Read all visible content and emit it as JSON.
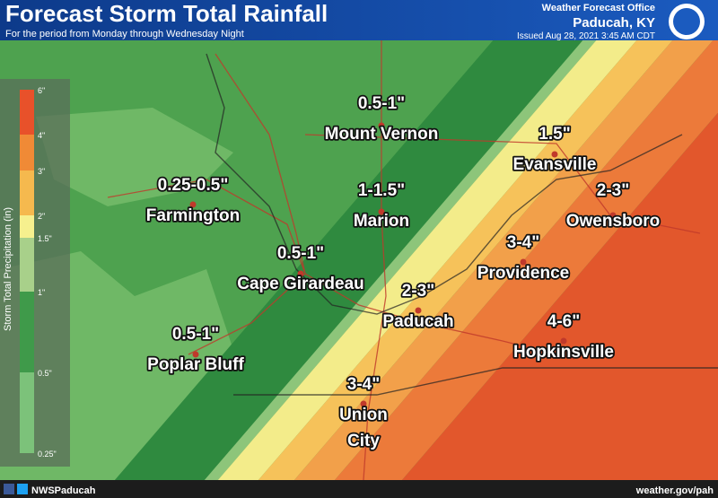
{
  "header": {
    "title": "Forecast Storm Total Rainfall",
    "subtitle": "For the period from Monday through Wednesday Night",
    "office": "Weather Forecast Office",
    "location": "Paducah, KY",
    "issued": "Issued Aug 28, 2021 3:45 AM CDT"
  },
  "legend": {
    "title": "Storm Total Precipitation (in)",
    "labels": [
      "6\"",
      "4\"",
      "3\"",
      "2\"",
      "1.5\"",
      "1\"",
      "0.5\"",
      "0.25\""
    ]
  },
  "cities": [
    {
      "amount": "0.5-1\"",
      "lines": [
        "Mount Vernon"
      ]
    },
    {
      "amount": "1.5\"",
      "lines": [
        "Evansville"
      ]
    },
    {
      "amount": "0.25-0.5\"",
      "lines": [
        "Farmington"
      ]
    },
    {
      "amount": "1-1.5\"",
      "lines": [
        "Marion"
      ]
    },
    {
      "amount": "2-3\"",
      "lines": [
        "Owensboro"
      ]
    },
    {
      "amount": "3-4\"",
      "lines": [
        "Providence"
      ]
    },
    {
      "amount": "0.5-1\"",
      "lines": [
        "Cape Girardeau"
      ]
    },
    {
      "amount": "2-3\"",
      "lines": [
        "Paducah"
      ]
    },
    {
      "amount": "4-6\"",
      "lines": [
        "Hopkinsville"
      ]
    },
    {
      "amount": "0.5-1\"",
      "lines": [
        "Poplar Bluff"
      ]
    },
    {
      "amount": "3-4\"",
      "lines": [
        "Union",
        "City"
      ]
    }
  ],
  "footer": {
    "social": "NWSPaducah",
    "url": "weather.gov/pah"
  }
}
